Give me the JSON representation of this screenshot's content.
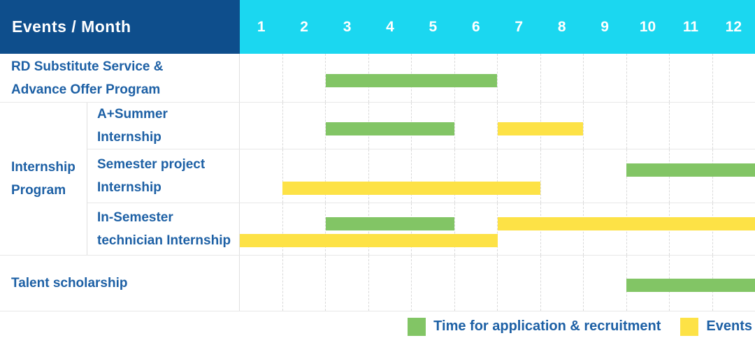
{
  "header": {
    "title": "Events / Month",
    "months": [
      "1",
      "2",
      "3",
      "4",
      "5",
      "6",
      "7",
      "8",
      "9",
      "10",
      "11",
      "12"
    ]
  },
  "legend": {
    "items": [
      {
        "series": "recruitment",
        "label": "Time for application & recruitment",
        "color": "#82c565"
      },
      {
        "series": "events",
        "label": "Events",
        "color": "#fde246"
      }
    ]
  },
  "colors": {
    "header_bg": "#0e4e8c",
    "month_header_bg": "#1bd7f0",
    "recruitment_green": "#82c565",
    "events_yellow": "#fde246",
    "text_blue": "#1d60a5"
  },
  "chart_data": {
    "type": "bar",
    "subtype": "gantt",
    "title": "Events / Month",
    "xlabel": "Month",
    "x_axis": {
      "ticks": [
        1,
        2,
        3,
        4,
        5,
        6,
        7,
        8,
        9,
        10,
        11,
        12
      ],
      "range": [
        1,
        12
      ]
    },
    "grid": "dashed-vertical-month-lines",
    "legend_position": "bottom-right",
    "series_legend": [
      "Time for application & recruitment",
      "Events"
    ],
    "rows": [
      {
        "group": null,
        "label": "RD Substitute Service & Advance Offer Program",
        "label_lines": [
          "RD Substitute Service &",
          "Advance Offer Program"
        ],
        "bars": [
          {
            "series": "recruitment",
            "start_month": 3,
            "end_month": 6,
            "lane": 0
          }
        ]
      },
      {
        "group": "Internship Program",
        "group_label_lines": [
          "Internship",
          "Program"
        ],
        "label": "A+Summer Internship",
        "label_lines": [
          "A+Summer",
          "Internship"
        ],
        "bars": [
          {
            "series": "recruitment",
            "start_month": 3,
            "end_month": 5,
            "lane": 0
          },
          {
            "series": "events",
            "start_month": 7,
            "end_month": 8,
            "lane": 0
          }
        ]
      },
      {
        "group": "Internship Program",
        "label": "Semester project Internship",
        "label_lines": [
          "Semester project",
          "Internship"
        ],
        "bars": [
          {
            "series": "recruitment",
            "start_month": 10,
            "end_month": 12,
            "lane": 0
          },
          {
            "series": "events",
            "start_month": 2,
            "end_month": 7,
            "lane": 1
          }
        ]
      },
      {
        "group": "Internship Program",
        "label": "In-Semester technician Internship",
        "label_lines": [
          "In-Semester",
          "technician Internship"
        ],
        "bars": [
          {
            "series": "recruitment",
            "start_month": 3,
            "end_month": 5,
            "lane": 0
          },
          {
            "series": "events",
            "start_month": 7,
            "end_month": 12,
            "lane": 0
          },
          {
            "series": "events",
            "start_month": 1,
            "end_month": 6,
            "lane": 1
          }
        ]
      },
      {
        "group": null,
        "label": "Talent scholarship",
        "label_lines": [
          "Talent scholarship"
        ],
        "bars": [
          {
            "series": "recruitment",
            "start_month": 10,
            "end_month": 12,
            "lane": 0
          }
        ]
      }
    ]
  }
}
